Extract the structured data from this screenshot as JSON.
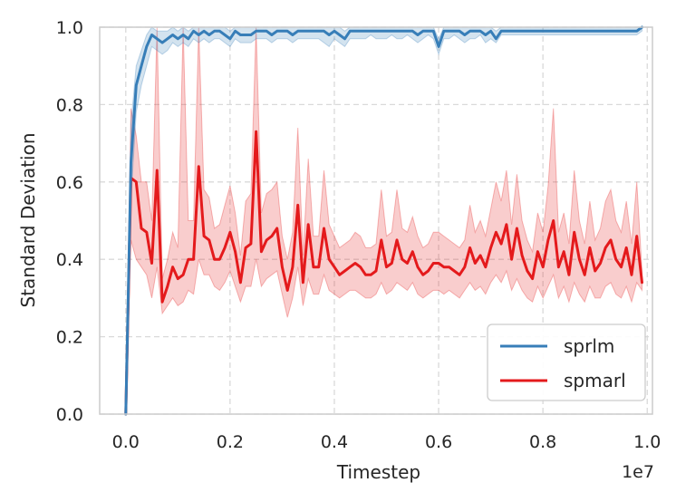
{
  "chart_data": {
    "type": "line",
    "title": "",
    "xlabel": "Timestep",
    "ylabel": "Standard Deviation",
    "x_offset_label": "1e7",
    "xlim": [
      -0.05,
      1.01
    ],
    "ylim": [
      0.0,
      1.0
    ],
    "xticks": [
      0.0,
      0.2,
      0.4,
      0.6,
      0.8,
      1.0
    ],
    "xtick_labels": [
      "0.0",
      "0.2",
      "0.4",
      "0.6",
      "0.8",
      "1.0"
    ],
    "yticks": [
      0.0,
      0.2,
      0.4,
      0.6,
      0.8,
      1.0
    ],
    "ytick_labels": [
      "0.0",
      "0.2",
      "0.4",
      "0.6",
      "0.8",
      "1.0"
    ],
    "grid": true,
    "legend_position": "lower-right",
    "x": [
      0.0,
      0.01,
      0.02,
      0.03,
      0.04,
      0.05,
      0.06,
      0.07,
      0.08,
      0.09,
      0.1,
      0.11,
      0.12,
      0.13,
      0.14,
      0.15,
      0.16,
      0.17,
      0.18,
      0.19,
      0.2,
      0.21,
      0.22,
      0.23,
      0.24,
      0.25,
      0.26,
      0.27,
      0.28,
      0.29,
      0.3,
      0.31,
      0.32,
      0.33,
      0.34,
      0.35,
      0.36,
      0.37,
      0.38,
      0.39,
      0.4,
      0.41,
      0.42,
      0.43,
      0.44,
      0.45,
      0.46,
      0.47,
      0.48,
      0.49,
      0.5,
      0.51,
      0.52,
      0.53,
      0.54,
      0.55,
      0.56,
      0.57,
      0.58,
      0.59,
      0.6,
      0.61,
      0.62,
      0.63,
      0.64,
      0.65,
      0.66,
      0.67,
      0.68,
      0.69,
      0.7,
      0.71,
      0.72,
      0.73,
      0.74,
      0.75,
      0.76,
      0.77,
      0.78,
      0.79,
      0.8,
      0.81,
      0.82,
      0.83,
      0.84,
      0.85,
      0.86,
      0.87,
      0.88,
      0.89,
      0.9,
      0.91,
      0.92,
      0.93,
      0.94,
      0.95,
      0.96,
      0.97,
      0.98,
      0.99
    ],
    "series": [
      {
        "name": "sprlm",
        "color": "#377eb8",
        "values": [
          0.0,
          0.65,
          0.85,
          0.9,
          0.95,
          0.98,
          0.97,
          0.96,
          0.97,
          0.98,
          0.97,
          0.98,
          0.97,
          0.99,
          0.98,
          0.99,
          0.98,
          0.99,
          0.99,
          0.98,
          0.97,
          0.99,
          0.98,
          0.98,
          0.98,
          0.99,
          0.99,
          0.99,
          0.98,
          0.99,
          0.99,
          0.99,
          0.98,
          0.99,
          0.99,
          0.99,
          0.99,
          0.99,
          0.99,
          0.98,
          0.99,
          0.98,
          0.97,
          0.99,
          0.99,
          0.99,
          0.99,
          0.99,
          0.99,
          0.99,
          0.99,
          0.99,
          0.99,
          0.99,
          0.99,
          0.99,
          0.98,
          0.99,
          0.99,
          0.99,
          0.95,
          0.99,
          0.99,
          0.99,
          0.99,
          0.98,
          0.99,
          0.99,
          0.99,
          0.98,
          0.99,
          0.97,
          0.99,
          0.99,
          0.99,
          0.99,
          0.99,
          0.99,
          0.99,
          0.99,
          0.99,
          0.99,
          0.99,
          0.99,
          0.99,
          0.99,
          0.99,
          0.99,
          0.99,
          0.99,
          0.99,
          0.99,
          0.99,
          0.99,
          0.99,
          0.99,
          0.99,
          0.99,
          0.99,
          1.0
        ],
        "lower": [
          0.0,
          0.55,
          0.78,
          0.85,
          0.9,
          0.95,
          0.94,
          0.93,
          0.94,
          0.96,
          0.95,
          0.96,
          0.95,
          0.97,
          0.96,
          0.97,
          0.96,
          0.97,
          0.97,
          0.96,
          0.95,
          0.97,
          0.96,
          0.96,
          0.96,
          0.97,
          0.97,
          0.97,
          0.96,
          0.97,
          0.97,
          0.97,
          0.96,
          0.97,
          0.97,
          0.97,
          0.97,
          0.97,
          0.96,
          0.95,
          0.97,
          0.96,
          0.95,
          0.97,
          0.97,
          0.97,
          0.97,
          0.98,
          0.97,
          0.97,
          0.97,
          0.98,
          0.97,
          0.97,
          0.98,
          0.97,
          0.96,
          0.97,
          0.98,
          0.97,
          0.93,
          0.97,
          0.97,
          0.98,
          0.97,
          0.96,
          0.97,
          0.97,
          0.98,
          0.96,
          0.97,
          0.96,
          0.98,
          0.98,
          0.98,
          0.98,
          0.98,
          0.98,
          0.98,
          0.98,
          0.98,
          0.98,
          0.98,
          0.98,
          0.98,
          0.98,
          0.98,
          0.98,
          0.98,
          0.98,
          0.98,
          0.98,
          0.98,
          0.98,
          0.98,
          0.98,
          0.98,
          0.98,
          0.98,
          0.99
        ],
        "upper": [
          0.0,
          0.75,
          0.9,
          0.94,
          0.98,
          1.0,
          0.99,
          0.99,
          0.99,
          1.0,
          0.99,
          1.0,
          0.99,
          1.0,
          1.0,
          1.0,
          1.0,
          1.0,
          1.0,
          1.0,
          0.99,
          1.0,
          1.0,
          1.0,
          1.0,
          1.0,
          1.0,
          1.0,
          1.0,
          1.0,
          1.0,
          1.0,
          1.0,
          1.0,
          1.0,
          1.0,
          1.0,
          1.0,
          1.0,
          1.0,
          1.0,
          1.0,
          0.99,
          1.0,
          1.0,
          1.0,
          1.0,
          1.0,
          1.0,
          1.0,
          1.0,
          1.0,
          1.0,
          1.0,
          1.0,
          1.0,
          1.0,
          1.0,
          1.0,
          1.0,
          0.97,
          1.0,
          1.0,
          1.0,
          1.0,
          1.0,
          1.0,
          1.0,
          1.0,
          1.0,
          1.0,
          0.99,
          1.0,
          1.0,
          1.0,
          1.0,
          1.0,
          1.0,
          1.0,
          1.0,
          1.0,
          1.0,
          1.0,
          1.0,
          1.0,
          1.0,
          1.0,
          1.0,
          1.0,
          1.0,
          1.0,
          1.0,
          1.0,
          1.0,
          1.0,
          1.0,
          1.0,
          1.0,
          1.0,
          1.0
        ]
      },
      {
        "name": "spmarl",
        "color": "#e41a1c",
        "values": [
          0.0,
          0.61,
          0.6,
          0.48,
          0.47,
          0.39,
          0.63,
          0.29,
          0.33,
          0.38,
          0.35,
          0.36,
          0.4,
          0.4,
          0.64,
          0.46,
          0.45,
          0.4,
          0.4,
          0.43,
          0.47,
          0.42,
          0.34,
          0.43,
          0.44,
          0.73,
          0.42,
          0.45,
          0.46,
          0.48,
          0.38,
          0.32,
          0.38,
          0.54,
          0.34,
          0.49,
          0.38,
          0.38,
          0.48,
          0.4,
          0.38,
          0.36,
          0.37,
          0.38,
          0.39,
          0.38,
          0.36,
          0.36,
          0.37,
          0.45,
          0.38,
          0.39,
          0.45,
          0.4,
          0.39,
          0.42,
          0.38,
          0.36,
          0.37,
          0.39,
          0.39,
          0.38,
          0.38,
          0.37,
          0.36,
          0.38,
          0.43,
          0.39,
          0.41,
          0.38,
          0.43,
          0.47,
          0.44,
          0.49,
          0.4,
          0.48,
          0.41,
          0.37,
          0.35,
          0.42,
          0.38,
          0.45,
          0.5,
          0.38,
          0.42,
          0.36,
          0.47,
          0.4,
          0.36,
          0.43,
          0.37,
          0.39,
          0.43,
          0.45,
          0.4,
          0.38,
          0.43,
          0.36,
          0.46,
          0.34
        ],
        "lower": [
          0.0,
          0.45,
          0.4,
          0.38,
          0.36,
          0.3,
          0.38,
          0.26,
          0.28,
          0.3,
          0.28,
          0.29,
          0.32,
          0.31,
          0.4,
          0.36,
          0.36,
          0.33,
          0.32,
          0.34,
          0.37,
          0.33,
          0.29,
          0.33,
          0.33,
          0.4,
          0.33,
          0.35,
          0.36,
          0.37,
          0.31,
          0.25,
          0.3,
          0.38,
          0.28,
          0.35,
          0.31,
          0.31,
          0.36,
          0.32,
          0.31,
          0.3,
          0.31,
          0.32,
          0.32,
          0.31,
          0.3,
          0.3,
          0.31,
          0.34,
          0.31,
          0.32,
          0.34,
          0.33,
          0.32,
          0.34,
          0.31,
          0.3,
          0.31,
          0.32,
          0.32,
          0.31,
          0.32,
          0.31,
          0.3,
          0.32,
          0.34,
          0.32,
          0.33,
          0.31,
          0.34,
          0.36,
          0.34,
          0.37,
          0.32,
          0.35,
          0.32,
          0.3,
          0.29,
          0.33,
          0.3,
          0.33,
          0.36,
          0.3,
          0.33,
          0.29,
          0.34,
          0.31,
          0.29,
          0.33,
          0.3,
          0.3,
          0.33,
          0.34,
          0.31,
          0.3,
          0.33,
          0.29,
          0.34,
          0.32
        ],
        "upper": [
          0.0,
          0.79,
          0.72,
          0.6,
          0.6,
          0.5,
          1.0,
          0.35,
          0.4,
          0.47,
          0.43,
          1.0,
          0.5,
          0.5,
          1.0,
          0.58,
          0.56,
          0.48,
          0.49,
          0.54,
          0.59,
          0.52,
          0.41,
          0.55,
          0.57,
          1.0,
          0.52,
          0.57,
          0.58,
          0.6,
          0.46,
          0.4,
          0.47,
          0.74,
          0.41,
          0.66,
          0.46,
          0.46,
          0.63,
          0.49,
          0.46,
          0.43,
          0.44,
          0.45,
          0.47,
          0.46,
          0.43,
          0.43,
          0.44,
          0.58,
          0.46,
          0.47,
          0.58,
          0.48,
          0.47,
          0.51,
          0.46,
          0.43,
          0.44,
          0.47,
          0.47,
          0.46,
          0.45,
          0.44,
          0.43,
          0.45,
          0.54,
          0.47,
          0.5,
          0.46,
          0.53,
          0.6,
          0.55,
          0.63,
          0.49,
          0.62,
          0.5,
          0.45,
          0.42,
          0.52,
          0.47,
          0.59,
          0.79,
          0.47,
          0.52,
          0.44,
          0.63,
          0.5,
          0.44,
          0.55,
          0.45,
          0.48,
          0.55,
          0.58,
          0.5,
          0.47,
          0.55,
          0.44,
          0.6,
          0.37
        ]
      }
    ]
  }
}
